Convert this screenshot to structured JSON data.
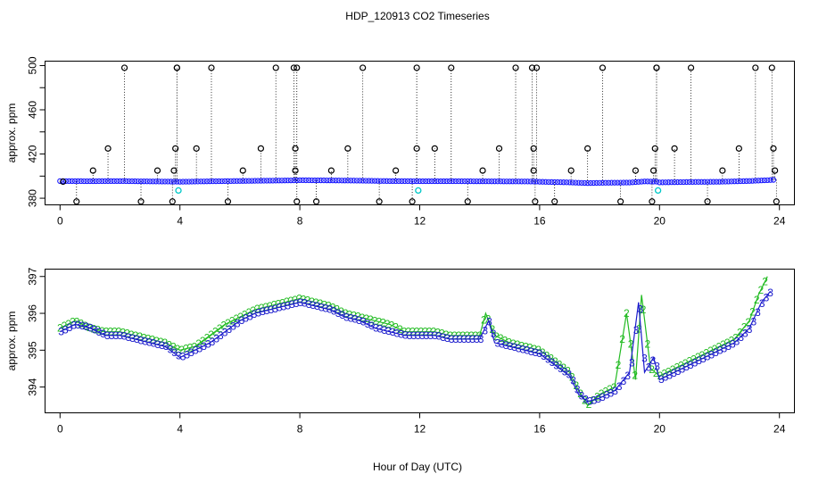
{
  "figure": {
    "title": "HDP_120913  CO2 Timeseries",
    "xlabel": "Hour of Day (UTC)"
  },
  "chart_data": [
    {
      "type": "scatter",
      "name": "top-panel",
      "ylabel": "approx. ppm",
      "xlim": [
        -0.5,
        24.5
      ],
      "ylim": [
        374,
        504
      ],
      "xticks": [
        0,
        4,
        8,
        12,
        16,
        20,
        24
      ],
      "yticks": [
        380,
        400,
        420,
        440,
        460,
        480,
        500
      ],
      "ytick_labels": [
        "380",
        "",
        "420",
        "",
        "460",
        "",
        "500"
      ],
      "colors": {
        "main": "#1a1aff",
        "flag": "#00c8c8",
        "outlier": "#000000"
      },
      "baseline": {
        "x": [
          0,
          1,
          2,
          3,
          3.9,
          4,
          5,
          6,
          7,
          7.95,
          8,
          9,
          10,
          11,
          12,
          13,
          14,
          15,
          15.9,
          16,
          17,
          17.6,
          18,
          19,
          19.5,
          19.9,
          20,
          21,
          22,
          23,
          23.9
        ],
        "y": [
          395.5,
          395.4,
          395.5,
          395.2,
          395.0,
          394.9,
          395.3,
          395.6,
          395.9,
          396.2,
          396.3,
          396.1,
          395.9,
          395.5,
          395.4,
          395.4,
          395.3,
          395.2,
          395.1,
          394.9,
          394.3,
          393.7,
          393.9,
          394.2,
          395.2,
          395.0,
          394.3,
          394.7,
          394.9,
          395.6,
          396.7
        ]
      },
      "flagged": {
        "x": [
          3.95,
          11.95,
          19.95
        ],
        "y": [
          387,
          387,
          387
        ]
      },
      "outliers": {
        "x": [
          0.1,
          0.55,
          1.1,
          1.6,
          2.15,
          2.7,
          3.25,
          3.75,
          3.8,
          3.85,
          3.9,
          3.9,
          4.55,
          5.05,
          5.6,
          6.1,
          6.7,
          7.2,
          7.8,
          7.85,
          7.85,
          7.9,
          7.9,
          8.55,
          9.05,
          9.6,
          10.1,
          10.65,
          11.2,
          11.75,
          11.9,
          11.9,
          12.5,
          13.05,
          13.6,
          14.1,
          14.65,
          15.2,
          15.75,
          15.8,
          15.8,
          15.85,
          15.9,
          16.5,
          17.05,
          17.6,
          18.1,
          18.7,
          19.2,
          19.75,
          19.8,
          19.85,
          19.9,
          19.9,
          20.5,
          21.05,
          21.6,
          22.1,
          22.65,
          23.2,
          23.75,
          23.8,
          23.85,
          23.9
        ],
        "y": [
          395,
          377,
          405,
          425,
          498,
          377,
          405,
          377,
          405,
          425,
          498,
          498,
          425,
          498,
          377,
          405,
          425,
          498,
          498,
          425,
          405,
          377,
          498,
          377,
          405,
          425,
          498,
          377,
          405,
          377,
          425,
          498,
          425,
          498,
          377,
          405,
          425,
          498,
          498,
          425,
          405,
          377,
          498,
          377,
          405,
          425,
          498,
          377,
          405,
          377,
          405,
          425,
          498,
          498,
          425,
          498,
          377,
          405,
          425,
          498,
          498,
          425,
          405,
          377
        ]
      }
    },
    {
      "type": "line",
      "name": "bottom-panel",
      "ylabel": "approx. ppm",
      "xlim": [
        -0.5,
        24.5
      ],
      "ylim": [
        393.3,
        397.2
      ],
      "xticks": [
        0,
        4,
        8,
        12,
        16,
        20,
        24
      ],
      "yticks": [
        394,
        395,
        396,
        397
      ],
      "series": [
        {
          "name": "2",
          "marker": "2",
          "color": "#22bb22",
          "x": [
            0,
            0.5,
            1,
            1.5,
            2,
            2.5,
            3,
            3.5,
            4,
            4.5,
            5,
            5.5,
            6,
            6.5,
            7,
            7.5,
            8,
            8.5,
            9,
            9.5,
            10,
            10.5,
            11,
            11.5,
            12,
            12.5,
            13,
            13.5,
            14,
            14.2,
            14.5,
            15,
            15.5,
            16,
            16.5,
            17,
            17.3,
            17.6,
            18,
            18.5,
            18.9,
            19.2,
            19.4,
            19.7,
            20,
            20.5,
            21,
            21.5,
            22,
            22.5,
            23,
            23.3,
            23.6
          ],
          "y": [
            395.6,
            395.8,
            395.6,
            395.5,
            395.5,
            395.4,
            395.3,
            395.2,
            395.0,
            395.1,
            395.4,
            395.7,
            395.9,
            396.1,
            396.2,
            396.3,
            396.4,
            396.3,
            396.2,
            396.0,
            395.9,
            395.8,
            395.7,
            395.5,
            395.5,
            395.5,
            395.4,
            395.4,
            395.4,
            396.0,
            395.4,
            395.2,
            395.1,
            395.0,
            394.7,
            394.4,
            393.9,
            393.5,
            393.8,
            394.0,
            396.0,
            394.2,
            396.5,
            394.5,
            394.3,
            394.5,
            394.7,
            394.9,
            395.1,
            395.3,
            395.8,
            396.5,
            397.0
          ]
        },
        {
          "name": "3",
          "marker": "3",
          "color": "#1a1acc",
          "x": [
            0,
            0.5,
            1,
            1.5,
            2,
            2.5,
            3,
            3.5,
            4,
            4.5,
            5,
            5.5,
            6,
            6.5,
            7,
            7.5,
            8,
            8.5,
            9,
            9.5,
            10,
            10.5,
            11,
            11.5,
            12,
            12.5,
            13,
            13.5,
            14,
            14.3,
            14.5,
            15,
            15.5,
            16,
            16.5,
            17,
            17.3,
            17.6,
            18,
            18.5,
            19,
            19.3,
            19.5,
            19.8,
            20,
            20.5,
            21,
            21.5,
            22,
            22.5,
            23,
            23.4,
            23.7
          ],
          "y": [
            395.5,
            395.7,
            395.6,
            395.4,
            395.4,
            395.3,
            395.2,
            395.1,
            394.8,
            395.0,
            395.2,
            395.5,
            395.8,
            396.0,
            396.1,
            396.2,
            396.3,
            396.2,
            396.1,
            395.9,
            395.8,
            395.6,
            395.5,
            395.4,
            395.4,
            395.4,
            395.3,
            395.3,
            395.3,
            395.8,
            395.2,
            395.1,
            395.0,
            394.9,
            394.6,
            394.3,
            393.8,
            393.6,
            393.7,
            393.9,
            394.4,
            396.3,
            394.4,
            394.8,
            394.2,
            394.4,
            394.6,
            394.8,
            395.0,
            395.2,
            395.6,
            396.3,
            396.6
          ]
        }
      ]
    }
  ]
}
